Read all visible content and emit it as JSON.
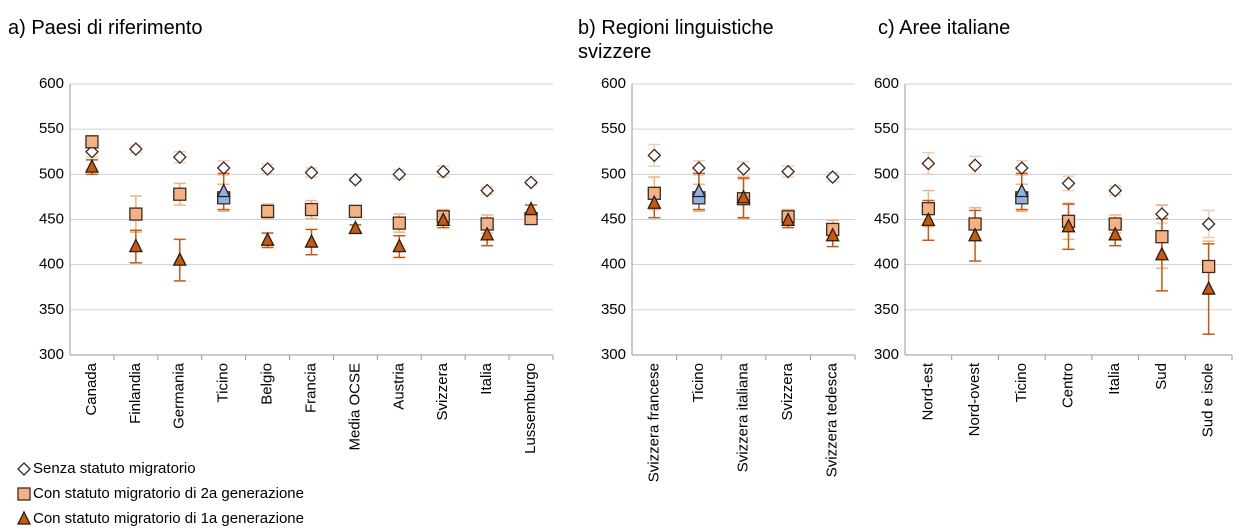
{
  "chart_data": [
    {
      "type": "scatter",
      "title": "a) Paesi di riferimento",
      "categories": [
        "Canada",
        "Finlandia",
        "Germania",
        "Ticino",
        "Belgio",
        "Francia",
        "Media OCSE",
        "Austria",
        "Svizzera",
        "Italia",
        "Lussemburgo"
      ],
      "ylim": [
        300,
        600
      ],
      "yticks": [
        300,
        350,
        400,
        450,
        500,
        550,
        600
      ],
      "grid": true,
      "highlight": {
        "category": "Ticino",
        "color": "#8db3e2"
      },
      "legend": "bottom-left",
      "series": [
        {
          "name": "Senza statuto migratorio",
          "marker": "diamond",
          "color": "#ffffff",
          "error_color": "#f8cbad",
          "values": [
            525,
            528,
            519,
            507,
            506,
            502,
            494,
            500,
            503,
            482,
            491
          ],
          "errors": [
            6,
            4,
            6,
            8,
            5,
            5,
            2,
            5,
            6,
            4,
            3
          ]
        },
        {
          "name": "Con statuto migratorio di 2a generazione",
          "marker": "square",
          "color": "#f4b183",
          "error_color": "#f4b183",
          "values": [
            536,
            456,
            478,
            474,
            459,
            461,
            459,
            446,
            453,
            445,
            451
          ],
          "errors": [
            6,
            20,
            12,
            15,
            8,
            10,
            3,
            10,
            8,
            10,
            5
          ]
        },
        {
          "name": "Con statuto migratorio di 1a generazione",
          "marker": "triangle",
          "color": "#c55a11",
          "error_color": "#c55a11",
          "values": [
            508,
            420,
            405,
            481,
            427,
            425,
            440,
            420,
            449,
            433,
            461
          ],
          "errors": [
            8,
            18,
            23,
            20,
            8,
            14,
            4,
            12,
            8,
            12,
            5
          ]
        }
      ]
    },
    {
      "type": "scatter",
      "title": "b) Regioni linguistiche svizzere",
      "categories": [
        "Svizzera francese",
        "Ticino",
        "Svizzera italiana",
        "Svizzera",
        "Svizzera tedesca"
      ],
      "ylim": [
        300,
        600
      ],
      "yticks": [
        300,
        350,
        400,
        450,
        500,
        550,
        600
      ],
      "grid": true,
      "highlight": {
        "category": "Ticino",
        "color": "#8db3e2"
      },
      "series": [
        {
          "marker": "diamond",
          "color": "#ffffff",
          "error_color": "#f8cbad",
          "values": [
            521,
            507,
            506,
            503,
            497
          ],
          "errors": [
            12,
            8,
            8,
            6,
            5
          ]
        },
        {
          "marker": "square",
          "color": "#f4b183",
          "error_color": "#f4b183",
          "values": [
            479,
            474,
            473,
            453,
            439
          ],
          "errors": [
            18,
            15,
            22,
            8,
            10
          ]
        },
        {
          "marker": "triangle",
          "color": "#c55a11",
          "error_color": "#c55a11",
          "values": [
            468,
            481,
            474,
            449,
            432
          ],
          "errors": [
            16,
            20,
            22,
            8,
            12
          ]
        }
      ]
    },
    {
      "type": "scatter",
      "title": "c) Aree italiane",
      "categories": [
        "Nord-est",
        "Nord-ovest",
        "Ticino",
        "Centro",
        "Italia",
        "Sud",
        "Sud e isole"
      ],
      "ylim": [
        300,
        600
      ],
      "yticks": [
        300,
        350,
        400,
        450,
        500,
        550,
        600
      ],
      "grid": true,
      "highlight": {
        "category": "Ticino",
        "color": "#8db3e2"
      },
      "series": [
        {
          "marker": "diamond",
          "color": "#ffffff",
          "error_color": "#f8cbad",
          "values": [
            512,
            510,
            507,
            490,
            482,
            456,
            445
          ],
          "errors": [
            12,
            10,
            8,
            8,
            5,
            10,
            15
          ]
        },
        {
          "marker": "square",
          "color": "#f4b183",
          "error_color": "#f4b183",
          "values": [
            462,
            445,
            474,
            448,
            445,
            431,
            398
          ],
          "errors": [
            20,
            18,
            15,
            20,
            10,
            35,
            28
          ]
        },
        {
          "marker": "triangle",
          "color": "#c55a11",
          "error_color": "#c55a11",
          "values": [
            449,
            432,
            481,
            442,
            433,
            411,
            373
          ],
          "errors": [
            22,
            28,
            20,
            25,
            12,
            40,
            50
          ]
        }
      ]
    }
  ]
}
